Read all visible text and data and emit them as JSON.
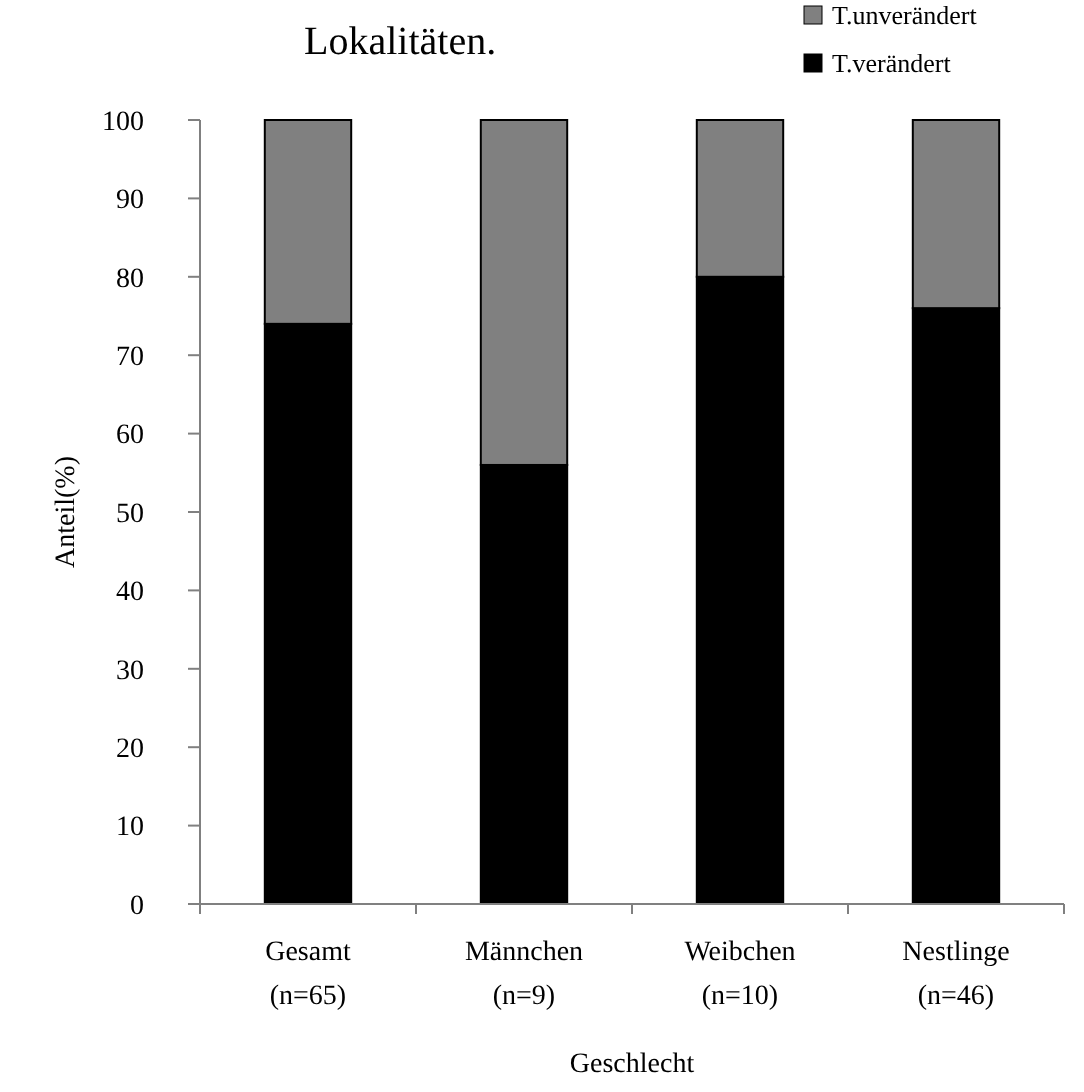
{
  "chart_data": {
    "type": "bar",
    "title": "Lokalitäten.",
    "xlabel": "Geschlecht",
    "ylabel": "Anteil(%)",
    "categories": [
      "Gesamt\n(n=65)",
      "Männchen\n(n=9)",
      "Weibchen\n(n=10)",
      "Nestlinge\n(n=46)"
    ],
    "stacked": true,
    "series": [
      {
        "name": "T.verändert",
        "color": "#000000",
        "values": [
          74,
          56,
          80,
          76
        ]
      },
      {
        "name": "T.unverändert",
        "color": "#808080",
        "values": [
          26,
          44,
          20,
          24
        ]
      }
    ],
    "ylim": [
      0,
      100
    ],
    "yticks": [
      0,
      10,
      20,
      30,
      40,
      50,
      60,
      70,
      80,
      90,
      100
    ],
    "legend": "top right"
  }
}
